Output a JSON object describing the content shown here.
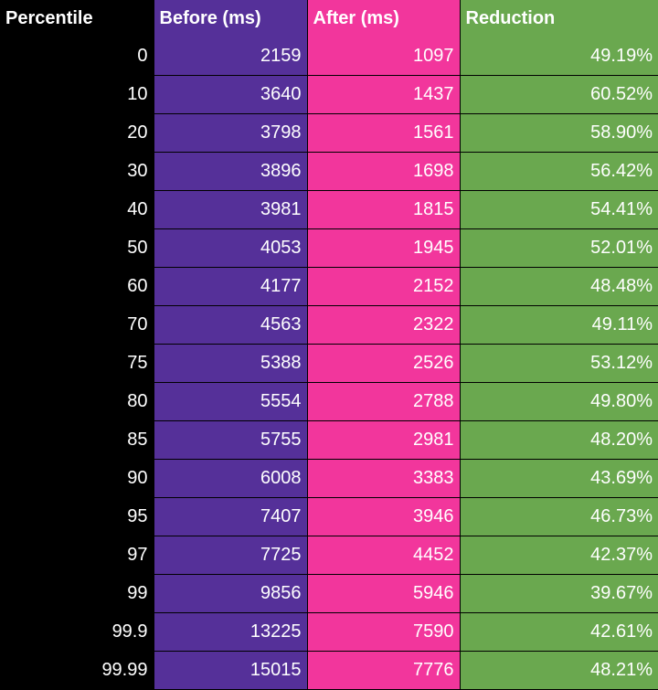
{
  "chart_data": {
    "type": "table",
    "columns": [
      "Percentile",
      "Before (ms)",
      "After (ms)",
      "Reduction"
    ],
    "rows": [
      [
        "0",
        "2159",
        "1097",
        "49.19%"
      ],
      [
        "10",
        "3640",
        "1437",
        "60.52%"
      ],
      [
        "20",
        "3798",
        "1561",
        "58.90%"
      ],
      [
        "30",
        "3896",
        "1698",
        "56.42%"
      ],
      [
        "40",
        "3981",
        "1815",
        "54.41%"
      ],
      [
        "50",
        "4053",
        "1945",
        "52.01%"
      ],
      [
        "60",
        "4177",
        "2152",
        "48.48%"
      ],
      [
        "70",
        "4563",
        "2322",
        "49.11%"
      ],
      [
        "75",
        "5388",
        "2526",
        "53.12%"
      ],
      [
        "80",
        "5554",
        "2788",
        "49.80%"
      ],
      [
        "85",
        "5755",
        "2981",
        "48.20%"
      ],
      [
        "90",
        "6008",
        "3383",
        "43.69%"
      ],
      [
        "95",
        "7407",
        "3946",
        "46.73%"
      ],
      [
        "97",
        "7725",
        "4452",
        "42.37%"
      ],
      [
        "99",
        "9856",
        "5946",
        "39.67%"
      ],
      [
        "99.9",
        "13225",
        "7590",
        "42.61%"
      ],
      [
        "99.99",
        "15015",
        "7776",
        "48.21%"
      ]
    ],
    "column_colors": [
      "#000000",
      "#553099",
      "#f2369c",
      "#6aa84f"
    ]
  }
}
